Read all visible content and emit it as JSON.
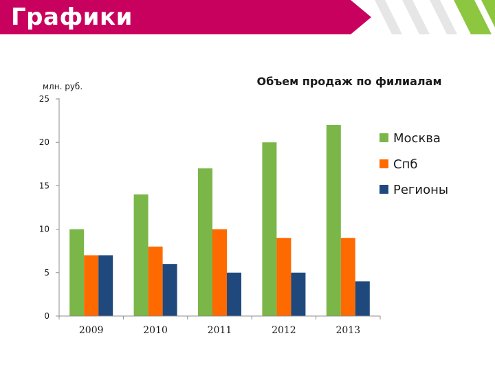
{
  "slide": {
    "title": "Графики"
  },
  "colors": {
    "banner": "#c8005e",
    "stripe_green": "#8dc63f",
    "moscow": "#7ab648",
    "spb": "#ff6a00",
    "regions": "#1f497d"
  },
  "chart_data": {
    "type": "bar",
    "title": "Объем продаж по филиалам",
    "ylabel": "млн. руб.",
    "xlabel": "",
    "categories": [
      "2009",
      "2010",
      "2011",
      "2012",
      "2013"
    ],
    "ylim": [
      0,
      25
    ],
    "yticks": [
      0,
      5,
      10,
      15,
      20,
      25
    ],
    "grid": false,
    "legend_position": "right",
    "series": [
      {
        "name": "Москва",
        "color": "#7ab648",
        "values": [
          10,
          14,
          17,
          20,
          22
        ]
      },
      {
        "name": "Спб",
        "color": "#ff6a00",
        "values": [
          7,
          8,
          10,
          9,
          9
        ]
      },
      {
        "name": "Регионы",
        "color": "#1f497d",
        "values": [
          7,
          6,
          5,
          5,
          4
        ]
      }
    ]
  }
}
